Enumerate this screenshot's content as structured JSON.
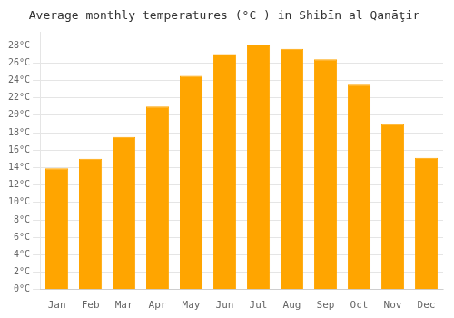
{
  "chart_data": {
    "type": "bar",
    "title": "Average monthly temperatures (°C ) in Shibīn al Qanāţir",
    "categories": [
      "Jan",
      "Feb",
      "Mar",
      "Apr",
      "May",
      "Jun",
      "Jul",
      "Aug",
      "Sep",
      "Oct",
      "Nov",
      "Dec"
    ],
    "values": [
      13.9,
      15.0,
      17.5,
      21.0,
      24.5,
      27.0,
      28.0,
      27.6,
      26.4,
      23.5,
      19.0,
      15.1
    ],
    "color": "#FFA500",
    "ylim": [
      0,
      29.5
    ],
    "yticks": [
      {
        "value": 0,
        "label": "0°C"
      },
      {
        "value": 2,
        "label": "2°C"
      },
      {
        "value": 4,
        "label": "4°C"
      },
      {
        "value": 6,
        "label": "6°C"
      },
      {
        "value": 8,
        "label": "8°C"
      },
      {
        "value": 10,
        "label": "10°C"
      },
      {
        "value": 12,
        "label": "12°C"
      },
      {
        "value": 14,
        "label": "14°C"
      },
      {
        "value": 16,
        "label": "16°C"
      },
      {
        "value": 18,
        "label": "18°C"
      },
      {
        "value": 20,
        "label": "20°C"
      },
      {
        "value": 22,
        "label": "22°C"
      },
      {
        "value": 24,
        "label": "24°C"
      },
      {
        "value": 26,
        "label": "26°C"
      },
      {
        "value": 28,
        "label": "28°C"
      }
    ],
    "grid": true
  }
}
